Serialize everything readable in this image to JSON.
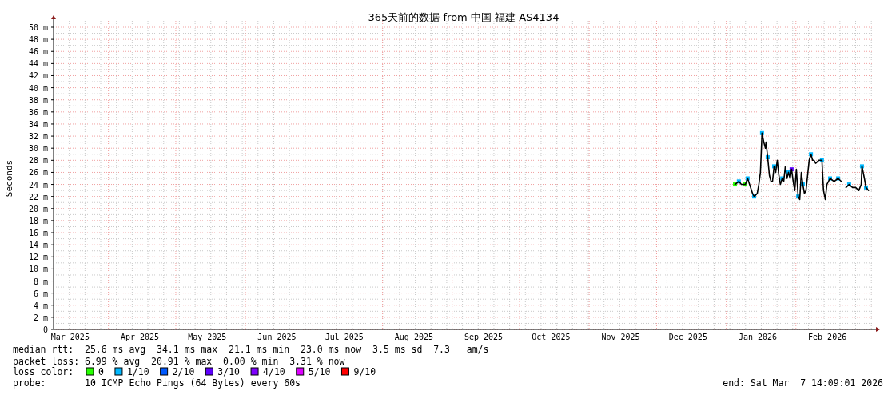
{
  "chart_data": {
    "type": "line",
    "title": "365天前的数据 from 中国 福建 AS4134",
    "ylabel": "Seconds",
    "xlim": [
      "2025-03-07T14:09",
      "2026-03-07T14:09"
    ],
    "xticks": [
      {
        "value": "2025-03-15",
        "label": "Mar 2025"
      },
      {
        "value": "2025-04-15",
        "label": "Apr 2025"
      },
      {
        "value": "2025-05-15",
        "label": "May 2025"
      },
      {
        "value": "2025-06-15",
        "label": "Jun 2025"
      },
      {
        "value": "2025-07-15",
        "label": "Jul 2025"
      },
      {
        "value": "2025-08-15",
        "label": "Aug 2025"
      },
      {
        "value": "2025-09-15",
        "label": "Sep 2025"
      },
      {
        "value": "2025-10-15",
        "label": "Oct 2025"
      },
      {
        "value": "2025-11-15",
        "label": "Nov 2025"
      },
      {
        "value": "2025-12-15",
        "label": "Dec 2025"
      },
      {
        "value": "2026-01-15",
        "label": "Jan 2026"
      },
      {
        "value": "2026-02-15",
        "label": "Feb 2026"
      }
    ],
    "ylim": [
      0,
      50
    ],
    "yticks": [
      0,
      {
        "value": 2,
        "label": "2 m"
      },
      {
        "value": 4,
        "label": "4 m"
      },
      {
        "value": 6,
        "label": "6 m"
      },
      {
        "value": 8,
        "label": "8 m"
      },
      {
        "value": 10,
        "label": "10 m"
      },
      {
        "value": 12,
        "label": "12 m"
      },
      {
        "value": 14,
        "label": "14 m"
      },
      {
        "value": 16,
        "label": "16 m"
      },
      {
        "value": 18,
        "label": "18 m"
      },
      {
        "value": 20,
        "label": "20 m"
      },
      {
        "value": 22,
        "label": "22 m"
      },
      {
        "value": 24,
        "label": "24 m"
      },
      {
        "value": 26,
        "label": "26 m"
      },
      {
        "value": 28,
        "label": "28 m"
      },
      {
        "value": 30,
        "label": "30 m"
      },
      {
        "value": 32,
        "label": "32 m"
      },
      {
        "value": 34,
        "label": "34 m"
      },
      {
        "value": 36,
        "label": "36 m"
      },
      {
        "value": 38,
        "label": "38 m"
      },
      {
        "value": 40,
        "label": "40 m"
      },
      {
        "value": 42,
        "label": "42 m"
      },
      {
        "value": 44,
        "label": "44 m"
      },
      {
        "value": 46,
        "label": "46 m"
      },
      {
        "value": 48,
        "label": "48 m"
      },
      {
        "value": 50,
        "label": "50 m"
      }
    ],
    "grid": true,
    "legend": "bottom",
    "legend_title": "loss color:",
    "marker": "none",
    "line_style": "solid",
    "series": [
      {
        "type": "line",
        "color": "#000000",
        "x": [
          "2026-01-04T21:00",
          "2026-01-06T14:00",
          "2026-01-07T17:00",
          "2026-01-09T12:00",
          "2026-01-10T12:00",
          "2026-01-12T17:00",
          "2026-01-13T10:00",
          "2026-01-14T19:00",
          "2026-01-15T12:00",
          "2026-01-16T05:00",
          "2026-01-16T22:00",
          "2026-01-17T17:00",
          "2026-01-18T10:00",
          "2026-01-18T17:00",
          "2026-01-19T10:00",
          "2026-01-20T05:00",
          "2026-01-20T22:00",
          "2026-01-21T14:00",
          "2026-01-22T07:00",
          "2026-01-23T00:00",
          "2026-01-23T17:00",
          "2026-01-24T10:00",
          "2026-01-25T02:00",
          "2026-01-25T22:00",
          "2026-01-26T14:00",
          "2026-01-27T07:00",
          "2026-01-28T00:00",
          "2026-01-28T17:00",
          "2026-01-29T10:00",
          "2026-01-30T02:00",
          "2026-01-30T19:00",
          "2026-01-31T12:00",
          "2026-02-01T05:00",
          "2026-02-02T00:00",
          "2026-02-02T17:00",
          "2026-02-03T10:00",
          "2026-02-04T02:00",
          "2026-02-04T19:00",
          "2026-02-05T12:00",
          "2026-02-06T05:00",
          "2026-02-06T22:00",
          "2026-02-07T17:00",
          "2026-02-08T10:00",
          "2026-02-09T02:00",
          "2026-02-09T19:00",
          "2026-02-11T05:00",
          "2026-02-12T14:00",
          "2026-02-13T07:00",
          "2026-02-14T02:00",
          "2026-02-14T19:00",
          "2026-02-16T05:00",
          "2026-02-18T00:00",
          "2026-02-19T19:00",
          "2026-02-21T05:00",
          "2026-02-22T05:00",
          "2026-02-23T07:00",
          "2026-02-24T17:00",
          "2026-02-26T05:00",
          "2026-02-27T14:00",
          "2026-03-01T00:00",
          "2026-03-02T02:00",
          "2026-03-02T10:00",
          "2026-03-03T12:00",
          "2026-03-04T05:00",
          "2026-03-05T07:00"
        ],
        "values": [
          24,
          24.5,
          24,
          24,
          25,
          22.5,
          22,
          22.5,
          24,
          26,
          32.5,
          31,
          30,
          31,
          28.5,
          25.5,
          24.5,
          24.5,
          27,
          26,
          28,
          25.5,
          24,
          25,
          24.5,
          27,
          25,
          26,
          25,
          26.5,
          24.5,
          23,
          26.5,
          22,
          21.5,
          26,
          24,
          22.5,
          23,
          25.5,
          28,
          29,
          28,
          28,
          27.5,
          28,
          28,
          23,
          21.5,
          24,
          25,
          24.5,
          25,
          24.5,
          null,
          23.5,
          24,
          23.5,
          23.5,
          23,
          24,
          27,
          25,
          23.5,
          23
        ]
      },
      {
        "type": "scatter",
        "name": "0",
        "color": "#26ff00",
        "marker": "square",
        "x": [
          "2026-01-04T21:00",
          "2026-01-09T12:00"
        ],
        "values": [
          24,
          24
        ]
      },
      {
        "type": "scatter",
        "name": "1/10",
        "color": "#00b8ff",
        "marker": "square",
        "x": [
          "2026-01-06T14:00",
          "2026-01-10T12:00",
          "2026-01-13T10:00",
          "2026-01-16T22:00",
          "2026-01-19T10:00",
          "2026-01-22T07:00",
          "2026-01-25T22:00",
          "2026-01-28T17:00",
          "2026-02-02T00:00",
          "2026-02-04T02:00",
          "2026-02-07T17:00",
          "2026-02-12T14:00",
          "2026-02-16T05:00",
          "2026-02-19T19:00",
          "2026-02-24T17:00",
          "2026-03-02T10:00",
          "2026-03-04T05:00"
        ],
        "values": [
          24.5,
          25,
          22,
          32.5,
          28.5,
          27,
          25,
          26,
          22,
          24,
          29,
          28,
          25,
          25,
          24,
          27,
          23.5
        ]
      },
      {
        "type": "scatter",
        "name": "2/10",
        "color": "#0059ff"
      },
      {
        "type": "scatter",
        "name": "3/10",
        "color": "#5e00ff",
        "marker": "square",
        "x": [
          "2026-01-30T02:00"
        ],
        "values": [
          26.5
        ]
      },
      {
        "type": "scatter",
        "name": "4/10",
        "color": "#7e00ff"
      },
      {
        "type": "scatter",
        "name": "5/10",
        "color": "#dd00ff"
      },
      {
        "type": "scatter",
        "name": "9/10",
        "color": "#ff0000"
      }
    ],
    "annotations": [
      "median rtt:  25.6 ms avg  34.1 ms max  21.1 ms min  23.0 ms now  3.5 ms sd  7.3   am/s",
      "packet loss: 6.99 % avg  20.91 % max  0.00 % min  3.31 % now",
      "probe:       10 ICMP Echo Pings (64 Bytes) every 60s",
      "end: Sat Mar  7 14:09:01 2026"
    ]
  }
}
